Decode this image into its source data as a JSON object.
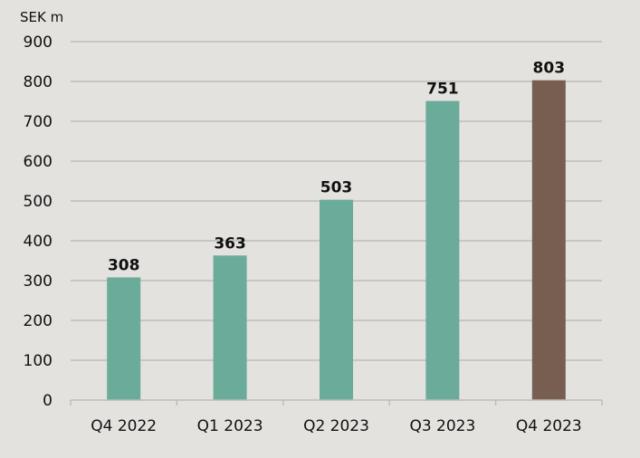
{
  "chart_data": {
    "type": "bar",
    "title": "",
    "ylabel": "SEK m",
    "xlabel": "",
    "categories": [
      "Q4 2022",
      "Q1 2023",
      "Q2 2023",
      "Q3 2023",
      "Q4 2023"
    ],
    "values": [
      308,
      363,
      503,
      751,
      803
    ],
    "data_labels": [
      "308",
      "363",
      "503",
      "751",
      "803"
    ],
    "ylim": [
      0,
      900
    ],
    "yticks": [
      0,
      100,
      200,
      300,
      400,
      500,
      600,
      700,
      800,
      900
    ],
    "grid": true,
    "colors": {
      "default": "#6aab9a",
      "highlight": "#775e51",
      "grid": "#bdbcb8",
      "background": "#e3e2de"
    },
    "highlight_index": 4
  }
}
